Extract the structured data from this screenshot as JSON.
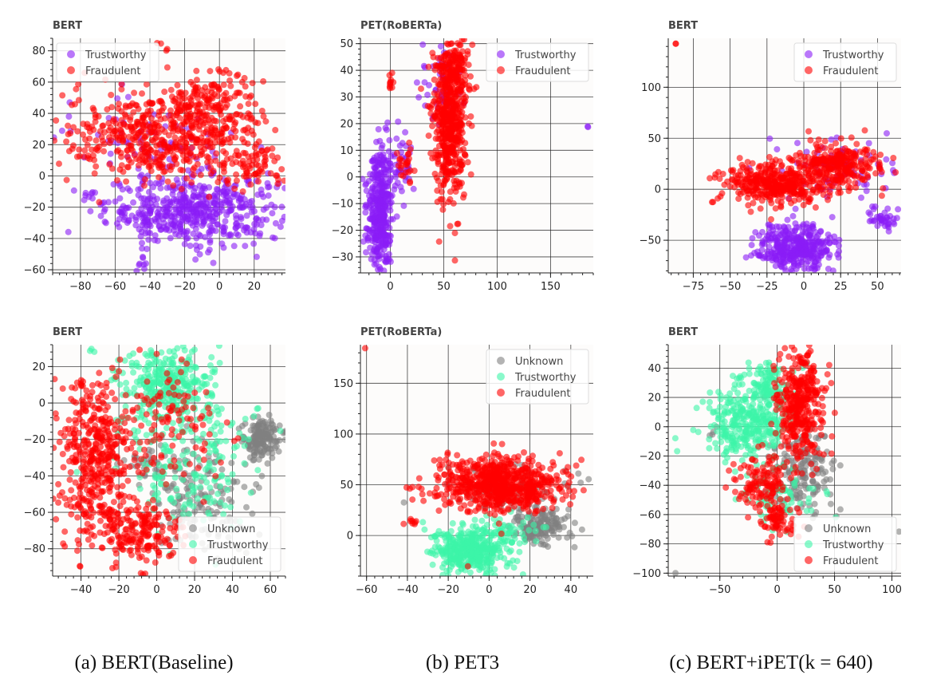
{
  "captions": [
    "(a) BERT(Baseline)",
    "(b) PET3",
    "(c) BERT+iPET(k = 640)"
  ],
  "colors": {
    "Trustworthy_2class": "#8b1cf7",
    "Fraudulent": "#ff0000",
    "Unknown": "#808080",
    "Trustworthy_3class": "#3cf5a8",
    "legend_text": "#444444",
    "title_text": "#444444",
    "grid": "#222222",
    "plot_bg": "#fdfcfb"
  },
  "chart_data": [
    {
      "type": "scatter",
      "title": "BERT",
      "xlabel": "",
      "ylabel": "",
      "xlim": [
        -96,
        38
      ],
      "ylim": [
        -62,
        88
      ],
      "xticks": [
        -80,
        -60,
        -40,
        -20,
        0,
        20
      ],
      "yticks": [
        -60,
        -40,
        -20,
        0,
        20,
        40,
        60,
        80
      ],
      "grid": true,
      "legend_position": "top-left",
      "series": [
        {
          "name": "Trustworthy",
          "clusters": [
            {
              "cx": -15,
              "cy": -22,
              "sx": 25,
              "sy": 11,
              "n": 520
            },
            {
              "cx": -75,
              "cy": -12,
              "sx": 3,
              "sy": 2,
              "n": 8
            },
            {
              "cx": -45,
              "cy": -57,
              "sx": 3,
              "sy": 3,
              "n": 8
            },
            {
              "cx": -40,
              "cy": 25,
              "sx": 28,
              "sy": 12,
              "n": 70
            }
          ]
        },
        {
          "name": "Fraudulent",
          "clusters": [
            {
              "cx": -30,
              "cy": 25,
              "sx": 30,
              "sy": 14,
              "n": 560
            },
            {
              "cx": -5,
              "cy": 50,
              "sx": 14,
              "sy": 8,
              "n": 120
            },
            {
              "cx": 20,
              "cy": 5,
              "sx": 10,
              "sy": 6,
              "n": 60
            },
            {
              "cx": -33,
              "cy": 83,
              "sx": 2,
              "sy": 2,
              "n": 4
            }
          ]
        }
      ]
    },
    {
      "type": "scatter",
      "title": "PET(RoBERTa)",
      "xlabel": "",
      "ylabel": "",
      "xlim": [
        -28,
        190
      ],
      "ylim": [
        -36,
        52
      ],
      "xticks": [
        0,
        50,
        100,
        150
      ],
      "yticks": [
        -30,
        -20,
        -10,
        0,
        10,
        20,
        30,
        40,
        50
      ],
      "grid": true,
      "legend_position": "top-right",
      "series": [
        {
          "name": "Trustworthy",
          "clusters": [
            {
              "cx": -10,
              "cy": -12,
              "sx": 6,
              "sy": 12,
              "n": 380
            },
            {
              "cx": 10,
              "cy": 5,
              "sx": 6,
              "sy": 5,
              "n": 40
            },
            {
              "cx": 45,
              "cy": 35,
              "sx": 10,
              "sy": 8,
              "n": 50
            },
            {
              "cx": 185,
              "cy": 18.5,
              "sx": 0.5,
              "sy": 0.5,
              "n": 2
            }
          ]
        },
        {
          "name": "Fraudulent",
          "clusters": [
            {
              "cx": 55,
              "cy": 20,
              "sx": 8,
              "sy": 14,
              "n": 520
            },
            {
              "cx": 62,
              "cy": 40,
              "sx": 8,
              "sy": 5,
              "n": 90
            },
            {
              "cx": 0,
              "cy": 36,
              "sx": 2,
              "sy": 2,
              "n": 10
            },
            {
              "cx": 15,
              "cy": 5,
              "sx": 5,
              "sy": 4,
              "n": 25
            }
          ]
        }
      ]
    },
    {
      "type": "scatter",
      "title": "BERT",
      "xlabel": "",
      "ylabel": "",
      "xlim": [
        -92,
        66
      ],
      "ylim": [
        -82,
        148
      ],
      "xticks": [
        -75,
        -50,
        -25,
        0,
        25,
        50
      ],
      "yticks": [
        -50,
        0,
        50,
        100
      ],
      "grid": true,
      "legend_position": "top-right",
      "series": [
        {
          "name": "Trustworthy",
          "clusters": [
            {
              "cx": -5,
              "cy": -58,
              "sx": 13,
              "sy": 12,
              "n": 380
            },
            {
              "cx": 53,
              "cy": -28,
              "sx": 5,
              "sy": 6,
              "n": 40
            },
            {
              "cx": 20,
              "cy": 20,
              "sx": 20,
              "sy": 15,
              "n": 80
            }
          ]
        },
        {
          "name": "Fraudulent",
          "clusters": [
            {
              "cx": -20,
              "cy": 5,
              "sx": 18,
              "sy": 10,
              "n": 380
            },
            {
              "cx": 22,
              "cy": 25,
              "sx": 14,
              "sy": 10,
              "n": 280
            },
            {
              "cx": -87,
              "cy": 142,
              "sx": 0.8,
              "sy": 0.8,
              "n": 2
            }
          ]
        }
      ]
    },
    {
      "type": "scatter",
      "title": "BERT",
      "xlabel": "",
      "ylabel": "",
      "xlim": [
        -55,
        68
      ],
      "ylim": [
        -95,
        32
      ],
      "xticks": [
        -40,
        -20,
        0,
        20,
        40,
        60
      ],
      "yticks": [
        -80,
        -60,
        -40,
        -20,
        0,
        20
      ],
      "grid": true,
      "legend_position": "bottom-right",
      "series": [
        {
          "name": "Unknown",
          "clusters": [
            {
              "cx": 55,
              "cy": -20,
              "sx": 5,
              "sy": 6,
              "n": 160
            },
            {
              "cx": 25,
              "cy": -55,
              "sx": 12,
              "sy": 14,
              "n": 140
            },
            {
              "cx": 0,
              "cy": -35,
              "sx": 12,
              "sy": 10,
              "n": 50
            }
          ]
        },
        {
          "name": "Trustworthy",
          "clusters": [
            {
              "cx": 5,
              "cy": 10,
              "sx": 12,
              "sy": 10,
              "n": 280
            },
            {
              "cx": 15,
              "cy": -30,
              "sx": 18,
              "sy": 22,
              "n": 220
            },
            {
              "cx": -35,
              "cy": 29,
              "sx": 1.5,
              "sy": 1.5,
              "n": 3
            }
          ]
        },
        {
          "name": "Fraudulent",
          "clusters": [
            {
              "cx": -33,
              "cy": -30,
              "sx": 10,
              "sy": 22,
              "n": 420
            },
            {
              "cx": -10,
              "cy": -70,
              "sx": 12,
              "sy": 9,
              "n": 200
            },
            {
              "cx": 10,
              "cy": -10,
              "sx": 14,
              "sy": 18,
              "n": 110
            }
          ]
        }
      ]
    },
    {
      "type": "scatter",
      "title": "PET(RoBERTa)",
      "xlabel": "",
      "ylabel": "",
      "xlim": [
        -63,
        51
      ],
      "ylim": [
        -40,
        188
      ],
      "xticks": [
        -60,
        -40,
        -20,
        0,
        20,
        40
      ],
      "yticks": [
        0,
        50,
        100,
        150
      ],
      "grid": true,
      "legend_position": "top-right",
      "series": [
        {
          "name": "Unknown",
          "clusters": [
            {
              "cx": 25,
              "cy": 10,
              "sx": 7,
              "sy": 10,
              "n": 160
            },
            {
              "cx": 10,
              "cy": 45,
              "sx": 18,
              "sy": 14,
              "n": 80
            }
          ]
        },
        {
          "name": "Trustworthy",
          "clusters": [
            {
              "cx": -10,
              "cy": -15,
              "sx": 9,
              "sy": 11,
              "n": 380
            },
            {
              "cx": 5,
              "cy": 5,
              "sx": 10,
              "sy": 8,
              "n": 60
            }
          ]
        },
        {
          "name": "Fraudulent",
          "clusters": [
            {
              "cx": 5,
              "cy": 50,
              "sx": 15,
              "sy": 13,
              "n": 700
            },
            {
              "cx": -37,
              "cy": 13,
              "sx": 2,
              "sy": 1.5,
              "n": 8
            },
            {
              "cx": -60,
              "cy": 185,
              "sx": 0.5,
              "sy": 0.5,
              "n": 1
            },
            {
              "cx": -10,
              "cy": -28,
              "sx": 1,
              "sy": 1,
              "n": 1
            }
          ]
        }
      ]
    },
    {
      "type": "scatter",
      "title": "BERT",
      "xlabel": "",
      "ylabel": "",
      "xlim": [
        -95,
        108
      ],
      "ylim": [
        -102,
        56
      ],
      "xticks": [
        -50,
        0,
        50,
        100
      ],
      "yticks": [
        -100,
        -80,
        -60,
        -40,
        -20,
        0,
        20,
        40
      ],
      "grid": true,
      "legend_position": "bottom-right",
      "series": [
        {
          "name": "Unknown",
          "clusters": [
            {
              "cx": 20,
              "cy": -30,
              "sx": 14,
              "sy": 14,
              "n": 170
            },
            {
              "cx": -55,
              "cy": -2,
              "sx": 3,
              "sy": 2,
              "n": 4
            },
            {
              "cx": 105,
              "cy": -72,
              "sx": 1,
              "sy": 1,
              "n": 1
            },
            {
              "cx": -91,
              "cy": -100,
              "sx": 1,
              "sy": 1,
              "n": 1
            }
          ]
        },
        {
          "name": "Trustworthy",
          "clusters": [
            {
              "cx": -25,
              "cy": 5,
              "sx": 18,
              "sy": 14,
              "n": 340
            },
            {
              "cx": -10,
              "cy": 30,
              "sx": 10,
              "sy": 8,
              "n": 80
            },
            {
              "cx": 0,
              "cy": -50,
              "sx": 16,
              "sy": 8,
              "n": 60
            }
          ]
        },
        {
          "name": "Fraudulent",
          "clusters": [
            {
              "cx": 20,
              "cy": 15,
              "sx": 10,
              "sy": 20,
              "n": 380
            },
            {
              "cx": -10,
              "cy": -40,
              "sx": 12,
              "sy": 10,
              "n": 140
            },
            {
              "cx": 0,
              "cy": -65,
              "sx": 8,
              "sy": 5,
              "n": 60
            }
          ]
        }
      ]
    }
  ]
}
